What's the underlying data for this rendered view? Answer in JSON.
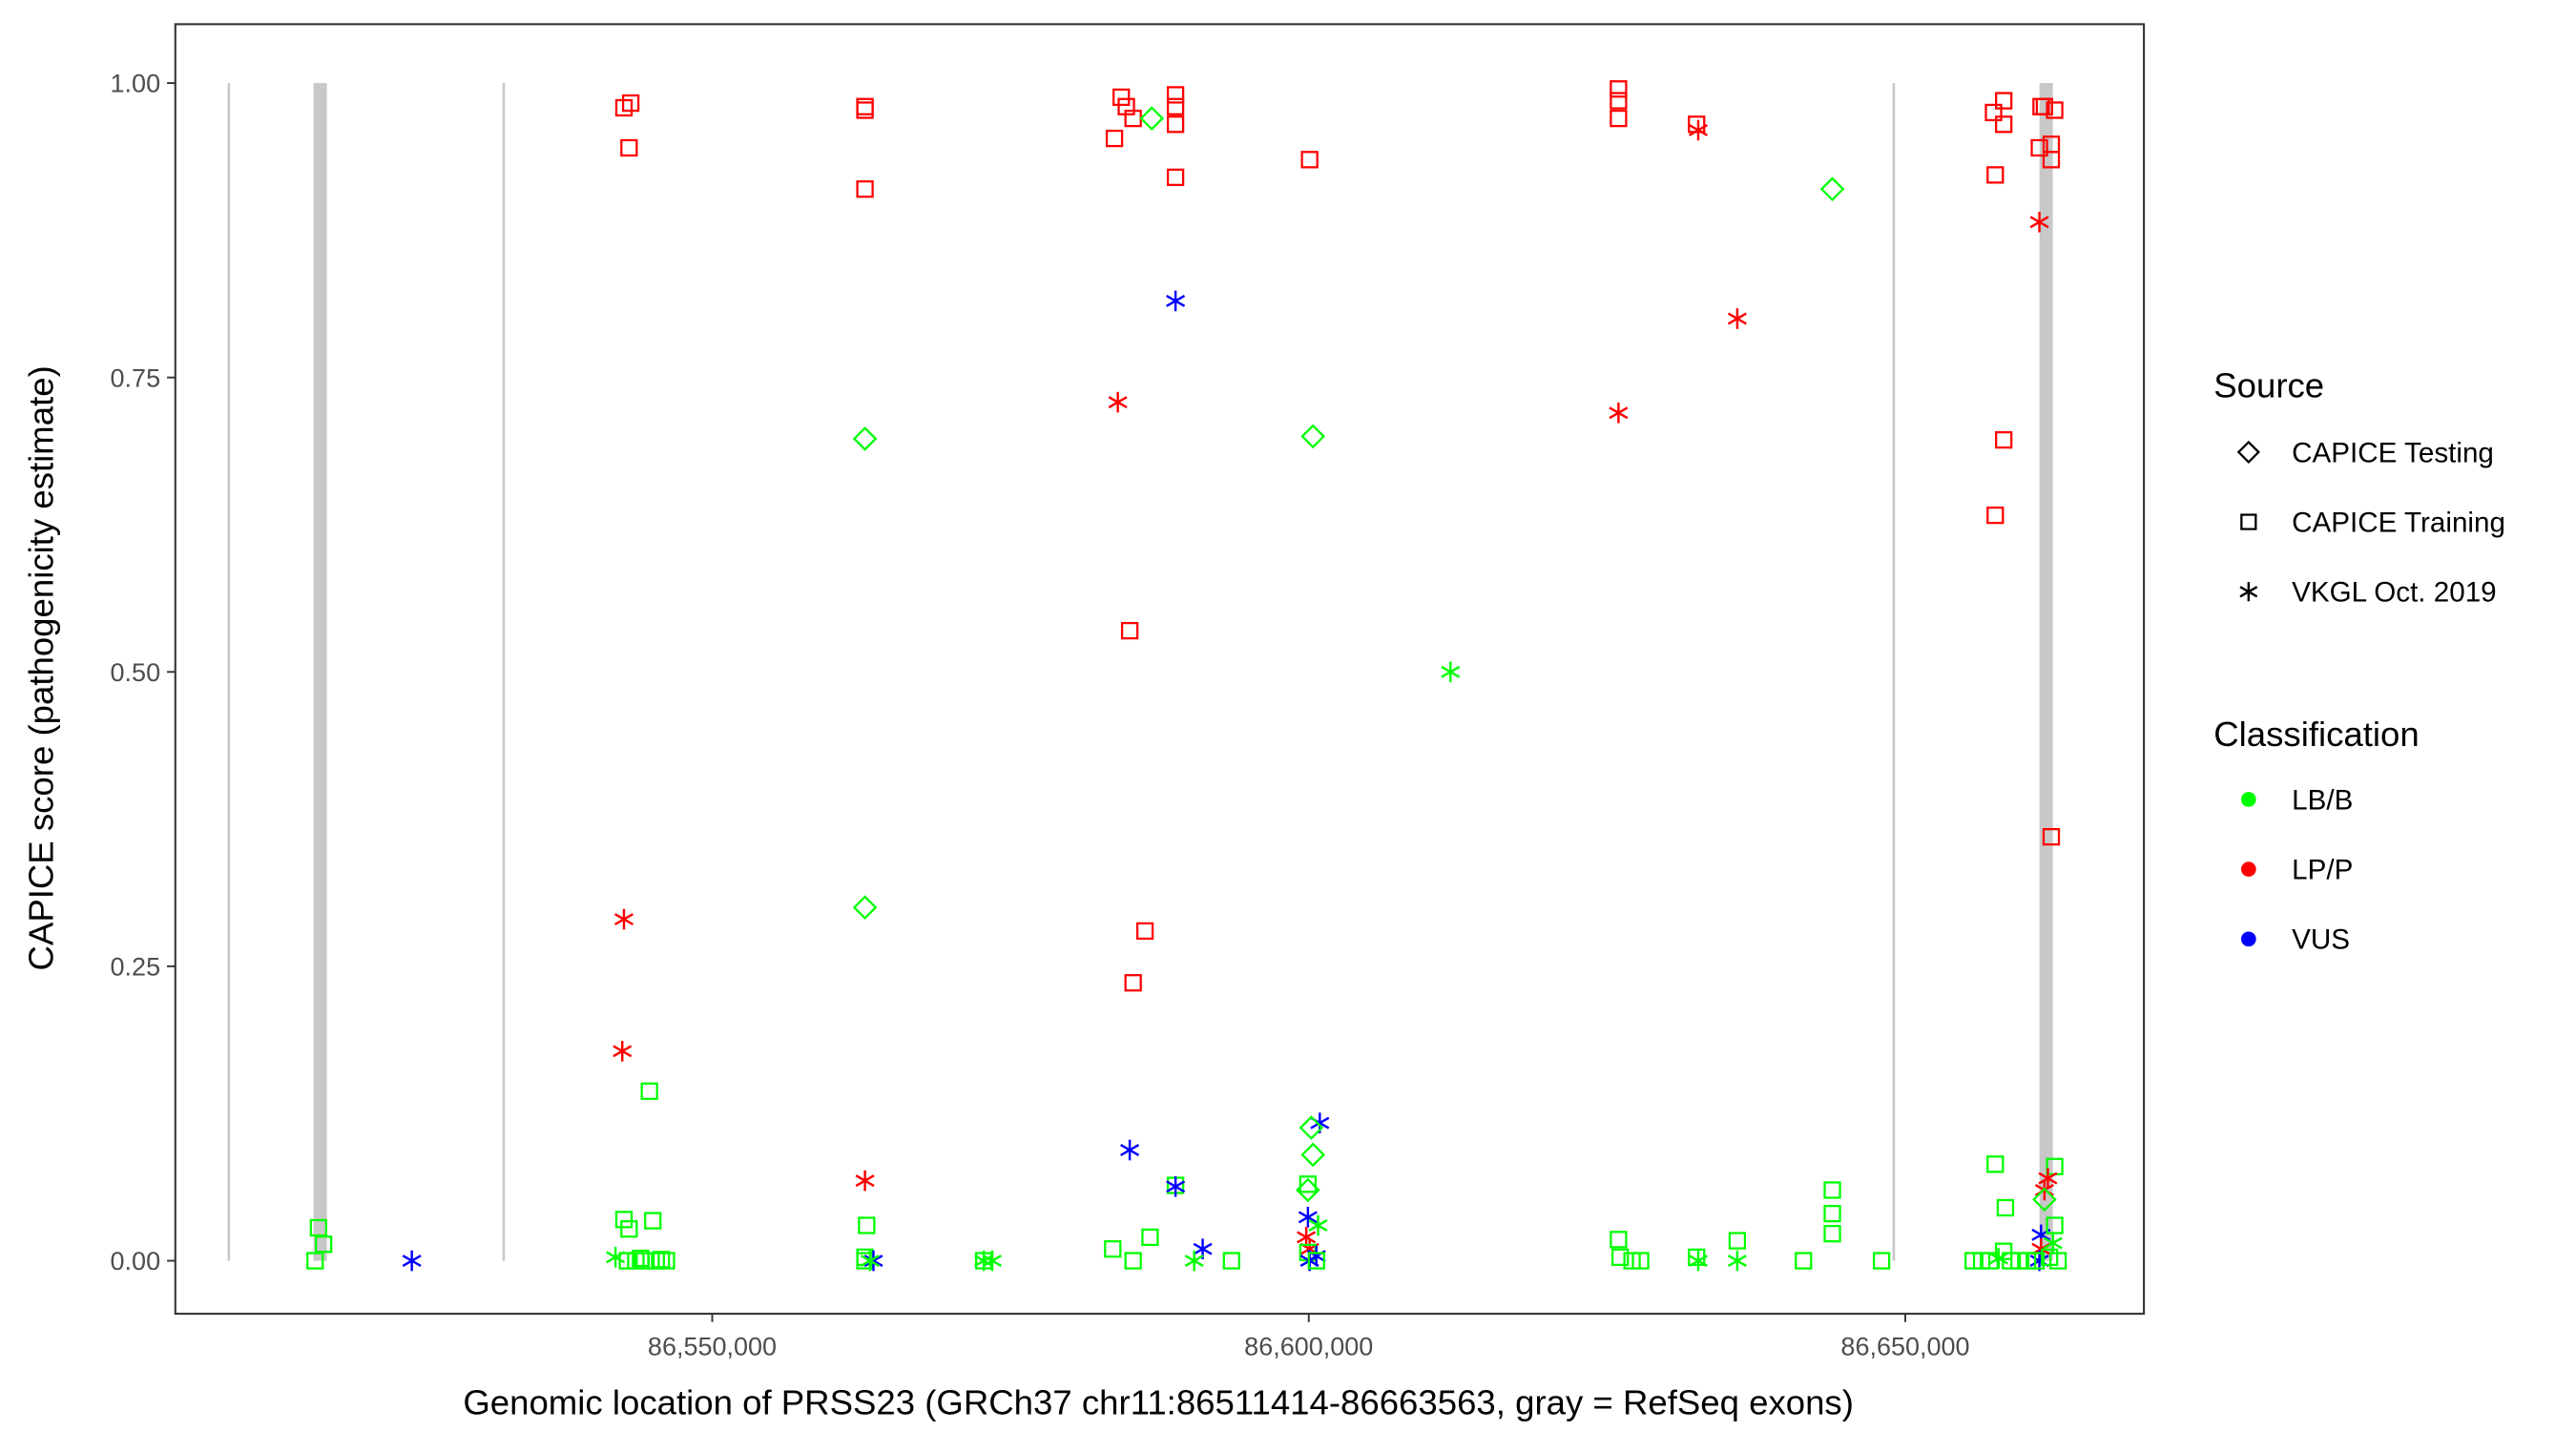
{
  "chart_data": {
    "type": "scatter",
    "title": "",
    "xlabel": "Genomic location of PRSS23 (GRCh37 chr11:86511414-86663563, gray = RefSeq exons)",
    "ylabel": "CAPICE score (pathogenicity estimate)",
    "xlim": [
      86505000,
      86670000
    ],
    "ylim": [
      -0.045,
      1.05
    ],
    "x_ticks": [
      86550000,
      86600000,
      86650000
    ],
    "x_tick_labels": [
      "86,550,000",
      "86,600,000",
      "86,650,000"
    ],
    "y_ticks": [
      0,
      0.25,
      0.5,
      0.75,
      1.0
    ],
    "y_tick_labels": [
      "0.00",
      "0.25",
      "0.50",
      "0.75",
      "1.00"
    ],
    "grid": false,
    "exons": [
      {
        "start": 86509380,
        "end": 86509540
      },
      {
        "start": 86516580,
        "end": 86517700
      },
      {
        "start": 86532420,
        "end": 86532580
      },
      {
        "start": 86648930,
        "end": 86649080
      },
      {
        "start": 86661250,
        "end": 86662370
      }
    ],
    "legend": {
      "placement": "right",
      "source_title": "Source",
      "source_items": [
        {
          "key": "T",
          "label": "CAPICE Testing",
          "shape": "diamond"
        },
        {
          "key": "R",
          "label": "CAPICE Training",
          "shape": "square"
        },
        {
          "key": "V",
          "label": "VKGL Oct. 2019",
          "shape": "asterisk"
        }
      ],
      "class_title": "Classification",
      "class_items": [
        {
          "key": "G",
          "label": "LB/B",
          "color": "#00ff00"
        },
        {
          "key": "P",
          "label": "LP/P",
          "color": "#ff0000"
        },
        {
          "key": "B",
          "label": "VUS",
          "color": "#0000ff"
        }
      ]
    },
    "point_fields": [
      "position",
      "score",
      "source",
      "classification"
    ],
    "points": [
      [
        86516713,
        0.0,
        "R",
        "G"
      ],
      [
        86517000,
        0.028,
        "R",
        "G"
      ],
      [
        86517425,
        0.014,
        "R",
        "G"
      ],
      [
        86524822,
        0.0,
        "V",
        "B"
      ],
      [
        86542603,
        0.979,
        "R",
        "P"
      ],
      [
        86543172,
        0.983,
        "R",
        "P"
      ],
      [
        86543030,
        0.945,
        "R",
        "P"
      ],
      [
        86542603,
        0.29,
        "V",
        "P"
      ],
      [
        86542461,
        0.178,
        "V",
        "P"
      ],
      [
        86544737,
        0.144,
        "R",
        "G"
      ],
      [
        86542603,
        0.035,
        "R",
        "G"
      ],
      [
        86543030,
        0.027,
        "R",
        "G"
      ],
      [
        86545021,
        0.034,
        "R",
        "G"
      ],
      [
        86541892,
        0.003,
        "V",
        "G"
      ],
      [
        86542888,
        0.0,
        "R",
        "G"
      ],
      [
        86543599,
        0.0,
        "R",
        "G"
      ],
      [
        86544310,
        0.0,
        "R",
        "G"
      ],
      [
        86545306,
        0.0,
        "R",
        "G"
      ],
      [
        86546159,
        0.0,
        "R",
        "G"
      ],
      [
        86545732,
        0.001,
        "R",
        "G"
      ],
      [
        86544000,
        0.002,
        "R",
        "G"
      ],
      [
        86562803,
        0.98,
        "R",
        "P"
      ],
      [
        86562803,
        0.977,
        "R",
        "P"
      ],
      [
        86562803,
        0.91,
        "R",
        "P"
      ],
      [
        86562803,
        0.698,
        "T",
        "G"
      ],
      [
        86562803,
        0.3,
        "T",
        "G"
      ],
      [
        86562803,
        0.068,
        "V",
        "P"
      ],
      [
        86562945,
        0.03,
        "R",
        "G"
      ],
      [
        86562803,
        0.003,
        "R",
        "G"
      ],
      [
        86562803,
        0.0,
        "R",
        "G"
      ],
      [
        86563514,
        0.0,
        "V",
        "B"
      ],
      [
        86563229,
        0.0,
        "V",
        "G"
      ],
      [
        86572760,
        0.0,
        "V",
        "G"
      ],
      [
        86572760,
        0.0,
        "R",
        "G"
      ],
      [
        86573471,
        0.0,
        "V",
        "G"
      ],
      [
        86583713,
        0.953,
        "R",
        "P"
      ],
      [
        86584283,
        0.988,
        "R",
        "P"
      ],
      [
        86584710,
        0.98,
        "R",
        "P"
      ],
      [
        86585279,
        0.97,
        "R",
        "P"
      ],
      [
        86586843,
        0.97,
        "T",
        "G"
      ],
      [
        86583998,
        0.729,
        "V",
        "P"
      ],
      [
        86584995,
        0.535,
        "R",
        "P"
      ],
      [
        86586274,
        0.28,
        "R",
        "P"
      ],
      [
        86585279,
        0.236,
        "R",
        "P"
      ],
      [
        86584995,
        0.094,
        "V",
        "B"
      ],
      [
        86583571,
        0.01,
        "R",
        "G"
      ],
      [
        86585279,
        0.0,
        "R",
        "G"
      ],
      [
        86586700,
        0.02,
        "R",
        "G"
      ],
      [
        86588834,
        0.99,
        "R",
        "P"
      ],
      [
        86588834,
        0.98,
        "R",
        "P"
      ],
      [
        86588834,
        0.965,
        "R",
        "P"
      ],
      [
        86588834,
        0.92,
        "R",
        "P"
      ],
      [
        86588834,
        0.815,
        "V",
        "B"
      ],
      [
        86588834,
        0.064,
        "R",
        "G"
      ],
      [
        86588834,
        0.063,
        "V",
        "B"
      ],
      [
        86591110,
        0.01,
        "V",
        "B"
      ],
      [
        86590399,
        0.0,
        "V",
        "G"
      ],
      [
        86593529,
        0.0,
        "R",
        "G"
      ],
      [
        86600072,
        0.935,
        "R",
        "P"
      ],
      [
        86600356,
        0.7,
        "T",
        "G"
      ],
      [
        86600925,
        0.117,
        "V",
        "B"
      ],
      [
        86600214,
        0.113,
        "T",
        "G"
      ],
      [
        86600356,
        0.09,
        "T",
        "G"
      ],
      [
        86599930,
        0.065,
        "R",
        "G"
      ],
      [
        86599930,
        0.06,
        "T",
        "G"
      ],
      [
        86599930,
        0.037,
        "V",
        "B"
      ],
      [
        86600783,
        0.03,
        "V",
        "G"
      ],
      [
        86599788,
        0.02,
        "V",
        "P"
      ],
      [
        86600072,
        0.01,
        "V",
        "P"
      ],
      [
        86599930,
        0.007,
        "R",
        "G"
      ],
      [
        86600072,
        0.0,
        "V",
        "B"
      ],
      [
        86600641,
        0.004,
        "V",
        "B"
      ],
      [
        86600641,
        0.0,
        "R",
        "G"
      ],
      [
        86611879,
        0.5,
        "V",
        "G"
      ],
      [
        86625962,
        0.995,
        "R",
        "P"
      ],
      [
        86625962,
        0.985,
        "R",
        "P"
      ],
      [
        86625962,
        0.97,
        "R",
        "P"
      ],
      [
        86625962,
        0.72,
        "V",
        "P"
      ],
      [
        86625962,
        0.018,
        "R",
        "G"
      ],
      [
        86626104,
        0.003,
        "R",
        "G"
      ],
      [
        86627100,
        0.0,
        "R",
        "G"
      ],
      [
        86627811,
        0.0,
        "R",
        "G"
      ],
      [
        86632505,
        0.965,
        "R",
        "P"
      ],
      [
        86632647,
        0.96,
        "V",
        "P"
      ],
      [
        86632505,
        0.003,
        "R",
        "G"
      ],
      [
        86632647,
        0.0,
        "V",
        "G"
      ],
      [
        86635919,
        0.8,
        "V",
        "P"
      ],
      [
        86635919,
        0.017,
        "R",
        "G"
      ],
      [
        86635919,
        0.0,
        "V",
        "G"
      ],
      [
        86641467,
        0.0,
        "R",
        "G"
      ],
      [
        86643885,
        0.91,
        "T",
        "G"
      ],
      [
        86643885,
        0.06,
        "R",
        "G"
      ],
      [
        86643885,
        0.04,
        "R",
        "G"
      ],
      [
        86643885,
        0.023,
        "R",
        "G"
      ],
      [
        86648011,
        0.0,
        "R",
        "G"
      ],
      [
        86657399,
        0.975,
        "R",
        "P"
      ],
      [
        86658252,
        0.965,
        "R",
        "P"
      ],
      [
        86658252,
        0.985,
        "R",
        "P"
      ],
      [
        86657541,
        0.922,
        "R",
        "P"
      ],
      [
        86658252,
        0.697,
        "R",
        "P"
      ],
      [
        86657541,
        0.633,
        "R",
        "P"
      ],
      [
        86661382,
        0.98,
        "R",
        "P"
      ],
      [
        86661240,
        0.945,
        "R",
        "P"
      ],
      [
        86662235,
        0.948,
        "R",
        "P"
      ],
      [
        86662235,
        0.935,
        "R",
        "P"
      ],
      [
        86662520,
        0.977,
        "R",
        "P"
      ],
      [
        86661666,
        0.98,
        "R",
        "P"
      ],
      [
        86662235,
        0.36,
        "R",
        "P"
      ],
      [
        86661240,
        0.882,
        "V",
        "P"
      ],
      [
        86657541,
        0.082,
        "R",
        "G"
      ],
      [
        86658394,
        0.045,
        "R",
        "G"
      ],
      [
        86662520,
        0.08,
        "R",
        "G"
      ],
      [
        86661951,
        0.07,
        "V",
        "P"
      ],
      [
        86661666,
        0.06,
        "V",
        "P"
      ],
      [
        86661666,
        0.052,
        "T",
        "G"
      ],
      [
        86661382,
        0.022,
        "V",
        "B"
      ],
      [
        86662520,
        0.03,
        "R",
        "G"
      ],
      [
        86661382,
        0.01,
        "V",
        "P"
      ],
      [
        86661240,
        0.0,
        "V",
        "B"
      ],
      [
        86658252,
        0.008,
        "R",
        "G"
      ],
      [
        86655692,
        0.0,
        "R",
        "G"
      ],
      [
        86656403,
        0.0,
        "R",
        "G"
      ],
      [
        86657100,
        0.0,
        "R",
        "G"
      ],
      [
        86658821,
        0.0,
        "R",
        "G"
      ],
      [
        86659533,
        0.0,
        "R",
        "G"
      ],
      [
        86660244,
        0.0,
        "R",
        "G"
      ],
      [
        86660955,
        0.0,
        "R",
        "G"
      ],
      [
        86662804,
        0.0,
        "R",
        "G"
      ],
      [
        86662093,
        0.003,
        "R",
        "G"
      ],
      [
        86657826,
        0.002,
        "V",
        "G"
      ],
      [
        86662378,
        0.015,
        "V",
        "G"
      ]
    ]
  }
}
